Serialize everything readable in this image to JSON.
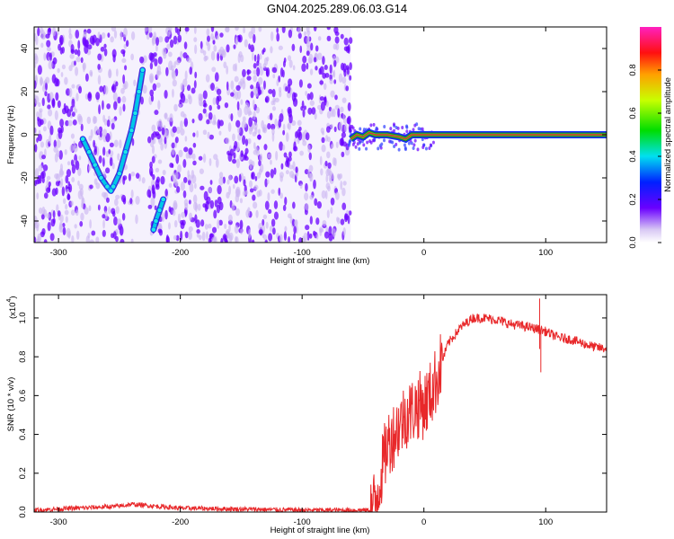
{
  "title": "GN04.2025.289.06.03.G14",
  "colors": {
    "snr_line": "#e8282a",
    "ridge_outline": "#2c6b2c",
    "ridge_core": "#e8282a",
    "speckle": "#6a00ff",
    "speckle_light": "#c9b4f2",
    "axes": "#000000"
  },
  "chart_data": [
    {
      "type": "heatmap",
      "xlabel": "Height of straight line (km)",
      "ylabel": "Frequency (Hz)",
      "xlim": [
        -320,
        150
      ],
      "ylim": [
        -50,
        50
      ],
      "xticks": [
        -300,
        -200,
        -100,
        0,
        100
      ],
      "yticks": [
        -40,
        -20,
        0,
        20,
        40
      ],
      "xtick_labels": [
        "-300",
        "-200",
        "-100",
        "0",
        "100"
      ],
      "ytick_labels": [
        "-40",
        "-20",
        "0",
        "20",
        "40"
      ],
      "noise_region_x": [
        -320,
        -60
      ],
      "ridge": {
        "x": [
          -280,
          -275,
          -270,
          -265,
          -260,
          -257,
          -255,
          -250,
          -245,
          -240,
          -237,
          -234,
          -231
        ],
        "y": [
          -2,
          -8,
          -14,
          -20,
          -24,
          -26,
          -24,
          -18,
          -8,
          2,
          10,
          20,
          30
        ]
      },
      "second_ridge": {
        "x": [
          -222,
          -220,
          -217,
          -214
        ],
        "y": [
          -44,
          -40,
          -35,
          -30
        ]
      },
      "carrier": {
        "x": [
          -60,
          -55,
          -50,
          -45,
          -40,
          -30,
          -20,
          -15,
          -10,
          0,
          50,
          100,
          150
        ],
        "y": [
          -2,
          0,
          -1,
          1,
          0,
          0,
          -1,
          -2,
          0,
          0,
          0,
          0,
          0
        ]
      }
    },
    {
      "type": "line",
      "xlabel": "Height of straight line (km)",
      "ylabel": "SNR (10 * v/v)",
      "scale_label": "(x10",
      "scale_exp": "4",
      "xlim": [
        -320,
        150
      ],
      "ylim": [
        0,
        1.12
      ],
      "xticks": [
        -300,
        -200,
        -100,
        0,
        100
      ],
      "yticks": [
        0,
        0.2,
        0.4,
        0.6,
        0.8,
        1.0
      ],
      "xtick_labels": [
        "-300",
        "-200",
        "-100",
        "0",
        "100"
      ],
      "ytick_labels": [
        "0.0",
        "0.2",
        "0.4",
        "0.6",
        "0.8",
        "1.0"
      ],
      "series": [
        {
          "x": [
            -320,
            -250,
            -240,
            -200,
            -100,
            -45,
            -40,
            -35,
            -30,
            -25,
            -20,
            -15,
            -10,
            -5,
            0,
            5,
            10,
            15,
            20,
            30,
            40,
            50,
            60,
            70,
            80,
            95,
            100,
            110,
            120,
            130,
            140,
            150
          ],
          "y": [
            0.01,
            0.03,
            0.04,
            0.02,
            0.01,
            0.01,
            0.05,
            0.2,
            0.35,
            0.4,
            0.45,
            0.5,
            0.52,
            0.55,
            0.55,
            0.6,
            0.68,
            0.78,
            0.87,
            0.95,
            1.0,
            1.0,
            0.99,
            0.97,
            0.96,
            0.94,
            0.93,
            0.9,
            0.89,
            0.87,
            0.85,
            0.84
          ]
        }
      ]
    }
  ],
  "colorbar": {
    "label": "Normalized spectral amplitude",
    "range": [
      0,
      1
    ],
    "ticks": [
      0,
      0.2,
      0.4,
      0.6,
      0.8
    ],
    "tick_labels": [
      "0.0",
      "0.2",
      "0.4",
      "0.6",
      "0.8"
    ]
  }
}
